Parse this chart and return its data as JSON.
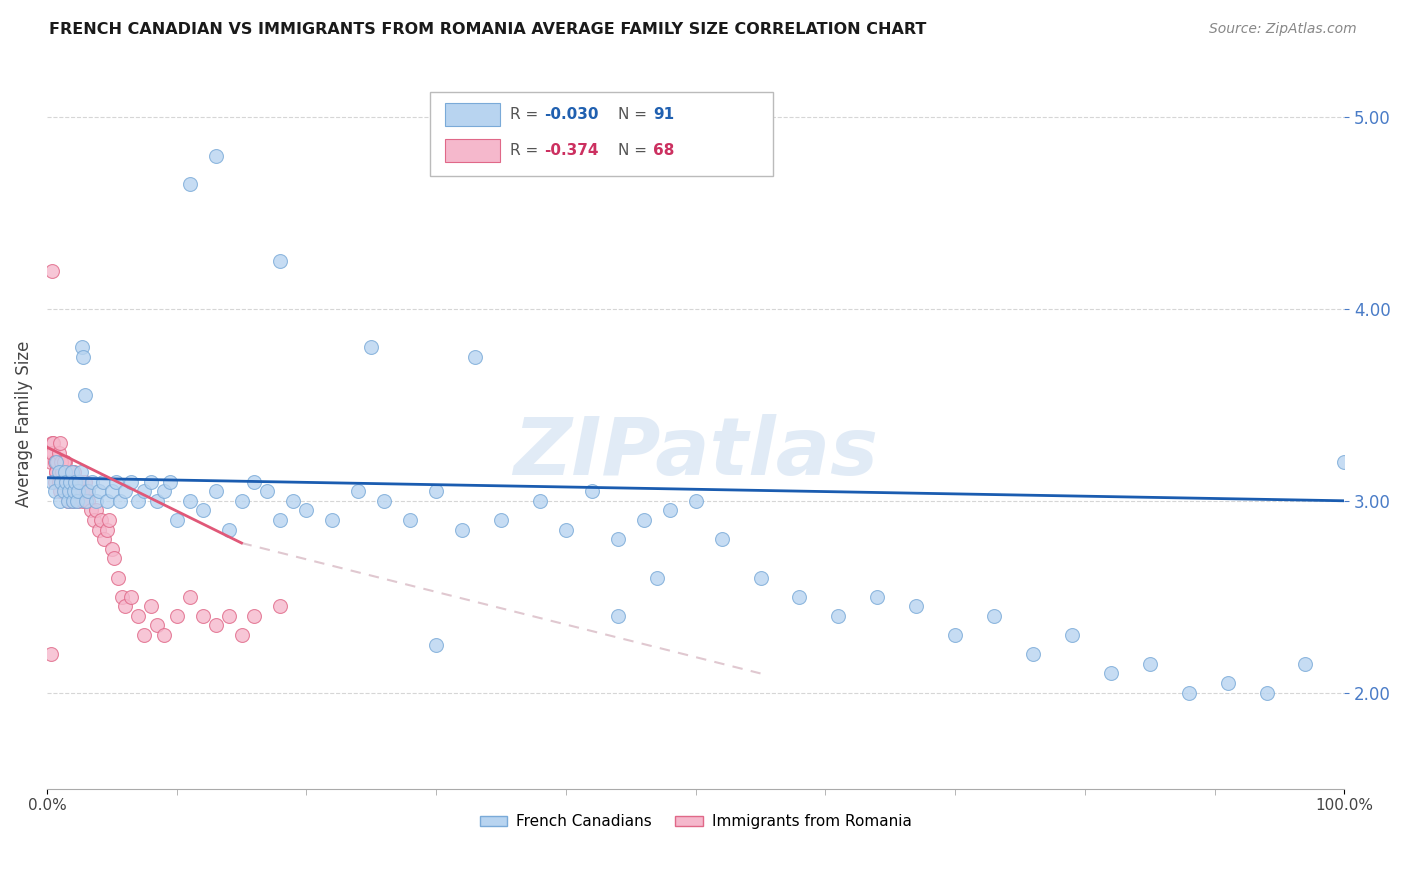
{
  "title": "FRENCH CANADIAN VS IMMIGRANTS FROM ROMANIA AVERAGE FAMILY SIZE CORRELATION CHART",
  "source": "Source: ZipAtlas.com",
  "ylabel": "Average Family Size",
  "xlim": [
    0,
    1.0
  ],
  "ylim": [
    1.5,
    5.3
  ],
  "yticks": [
    2.0,
    3.0,
    4.0,
    5.0
  ],
  "ytick_labels": [
    "2.00",
    "3.00",
    "4.00",
    "5.00"
  ],
  "xtick_labels": [
    "0.0%",
    "100.0%"
  ],
  "watermark": "ZIPatlas",
  "french_canadian_color": "#b8d4f0",
  "french_canadian_edge": "#7aaad8",
  "romania_color": "#f5b8cc",
  "romania_edge": "#e06888",
  "trend_blue": "#1a5cb0",
  "trend_pink": "#e05878",
  "trend_pink_ext": "#e0c8d0",
  "background": "#ffffff",
  "grid_color": "#cccccc",
  "r_blue": "-0.030",
  "n_blue": "91",
  "r_pink": "-0.374",
  "n_pink": "68",
  "french_canadian_x": [
    0.004,
    0.006,
    0.007,
    0.009,
    0.01,
    0.011,
    0.013,
    0.014,
    0.015,
    0.016,
    0.017,
    0.018,
    0.019,
    0.02,
    0.021,
    0.022,
    0.023,
    0.024,
    0.025,
    0.026,
    0.027,
    0.028,
    0.029,
    0.03,
    0.032,
    0.035,
    0.038,
    0.04,
    0.043,
    0.046,
    0.05,
    0.053,
    0.056,
    0.06,
    0.065,
    0.07,
    0.075,
    0.08,
    0.085,
    0.09,
    0.095,
    0.1,
    0.11,
    0.12,
    0.13,
    0.14,
    0.15,
    0.16,
    0.17,
    0.18,
    0.19,
    0.2,
    0.22,
    0.24,
    0.26,
    0.28,
    0.3,
    0.32,
    0.35,
    0.38,
    0.4,
    0.42,
    0.44,
    0.46,
    0.48,
    0.5,
    0.52,
    0.55,
    0.58,
    0.61,
    0.64,
    0.67,
    0.7,
    0.73,
    0.76,
    0.79,
    0.82,
    0.85,
    0.88,
    0.91,
    0.94,
    0.97,
    1.0,
    0.47,
    0.44,
    0.3,
    0.11,
    0.13,
    0.18,
    0.25,
    0.33
  ],
  "french_canadian_y": [
    3.1,
    3.05,
    3.2,
    3.15,
    3.0,
    3.1,
    3.05,
    3.15,
    3.1,
    3.0,
    3.05,
    3.1,
    3.15,
    3.0,
    3.05,
    3.1,
    3.0,
    3.05,
    3.1,
    3.15,
    3.8,
    3.75,
    3.55,
    3.0,
    3.05,
    3.1,
    3.0,
    3.05,
    3.1,
    3.0,
    3.05,
    3.1,
    3.0,
    3.05,
    3.1,
    3.0,
    3.05,
    3.1,
    3.0,
    3.05,
    3.1,
    2.9,
    3.0,
    2.95,
    3.05,
    2.85,
    3.0,
    3.1,
    3.05,
    2.9,
    3.0,
    2.95,
    2.9,
    3.05,
    3.0,
    2.9,
    3.05,
    2.85,
    2.9,
    3.0,
    2.85,
    3.05,
    2.8,
    2.9,
    2.95,
    3.0,
    2.8,
    2.6,
    2.5,
    2.4,
    2.5,
    2.45,
    2.3,
    2.4,
    2.2,
    2.3,
    2.1,
    2.15,
    2.0,
    2.05,
    2.0,
    2.15,
    3.2,
    2.6,
    2.4,
    2.25,
    4.65,
    4.8,
    4.25,
    3.8,
    3.75
  ],
  "romania_x": [
    0.003,
    0.004,
    0.005,
    0.006,
    0.007,
    0.008,
    0.009,
    0.01,
    0.011,
    0.012,
    0.013,
    0.014,
    0.015,
    0.016,
    0.017,
    0.018,
    0.019,
    0.02,
    0.021,
    0.022,
    0.023,
    0.024,
    0.025,
    0.026,
    0.027,
    0.028,
    0.029,
    0.03,
    0.032,
    0.034,
    0.036,
    0.038,
    0.04,
    0.042,
    0.044,
    0.046,
    0.048,
    0.05,
    0.052,
    0.055,
    0.058,
    0.06,
    0.065,
    0.07,
    0.075,
    0.08,
    0.085,
    0.09,
    0.1,
    0.11,
    0.12,
    0.13,
    0.14,
    0.15,
    0.16,
    0.18,
    0.004,
    0.005,
    0.006,
    0.007,
    0.008,
    0.009,
    0.01,
    0.011,
    0.012,
    0.013,
    0.003,
    0.004
  ],
  "romania_y": [
    3.2,
    3.3,
    3.25,
    3.1,
    3.15,
    3.2,
    3.1,
    3.05,
    3.15,
    3.1,
    3.05,
    3.2,
    3.1,
    3.0,
    3.15,
    3.05,
    3.1,
    3.0,
    3.15,
    3.05,
    3.1,
    3.0,
    3.05,
    3.1,
    3.05,
    3.0,
    3.1,
    3.05,
    3.0,
    2.95,
    2.9,
    2.95,
    2.85,
    2.9,
    2.8,
    2.85,
    2.9,
    2.75,
    2.7,
    2.6,
    2.5,
    2.45,
    2.5,
    2.4,
    2.3,
    2.45,
    2.35,
    2.3,
    2.4,
    2.5,
    2.4,
    2.35,
    2.4,
    2.3,
    2.4,
    2.45,
    3.25,
    3.3,
    3.2,
    3.15,
    3.2,
    3.25,
    3.3,
    3.2,
    3.15,
    3.2,
    2.2,
    4.2
  ]
}
